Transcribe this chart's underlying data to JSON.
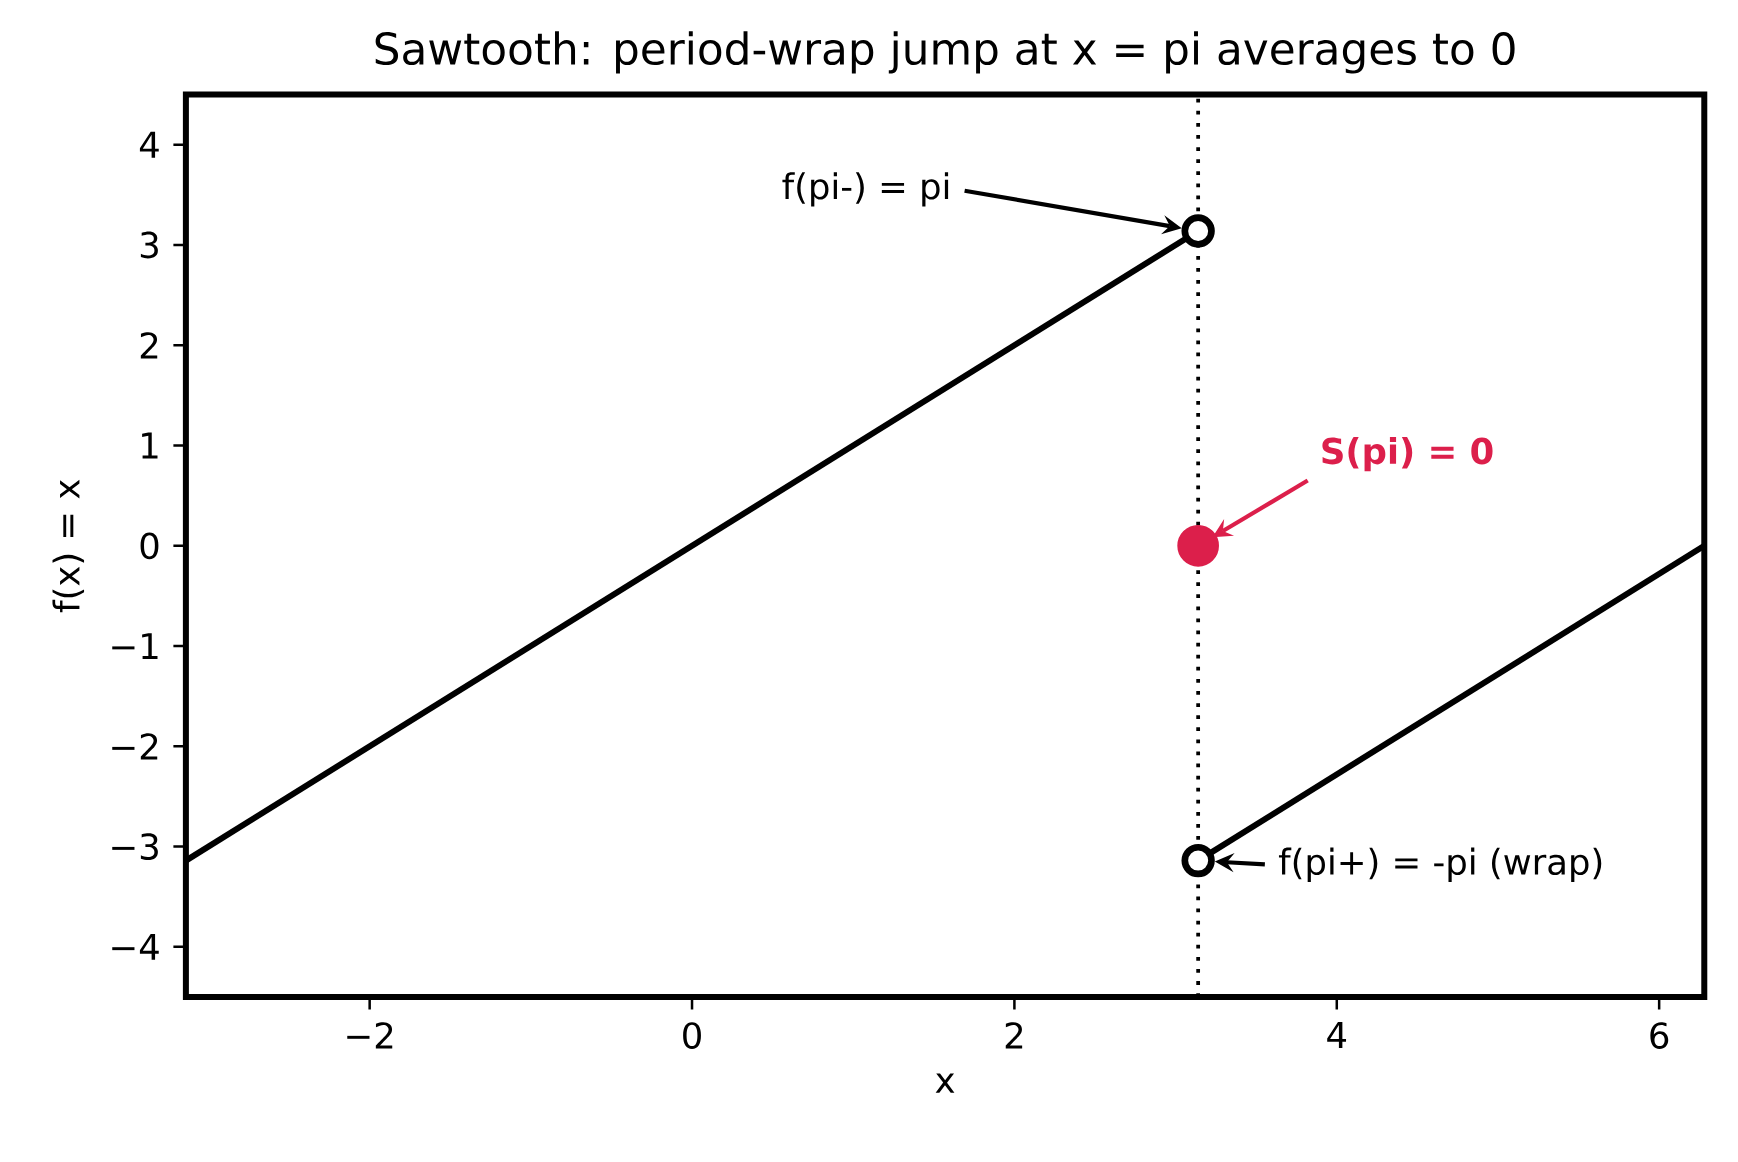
{
  "chart_data": {
    "type": "line",
    "title": "Sawtooth: period-wrap jump at x = pi averages to 0",
    "xlabel": "x",
    "ylabel": "f(x) = x",
    "xlim": [
      -3.14,
      6.28
    ],
    "ylim": [
      -4.5,
      4.5
    ],
    "xticks": [
      {
        "value": -2,
        "label": "−2"
      },
      0,
      2,
      4,
      6
    ],
    "yticks": [
      {
        "value": -4,
        "label": "−4"
      },
      {
        "value": -3,
        "label": "−3"
      },
      {
        "value": -2,
        "label": "−2"
      },
      {
        "value": -1,
        "label": "−1"
      },
      0,
      1,
      2,
      3,
      4
    ],
    "series": [
      {
        "color": "#000000",
        "x": [
          -3.14,
          3.14
        ],
        "values": [
          -3.14,
          3.14
        ]
      },
      {
        "color": "#000000",
        "x": [
          3.14,
          6.28
        ],
        "values": [
          -3.14,
          0
        ]
      },
      {
        "type": "scatter",
        "color": "#000000",
        "marker": "circle",
        "x": [
          3.14,
          3.14
        ],
        "values": [
          3.14,
          -3.14
        ]
      },
      {
        "type": "scatter",
        "color": "#dc1f4b",
        "marker": "circle",
        "x": [
          3.14
        ],
        "values": [
          0
        ]
      }
    ],
    "ref_lines": [
      {
        "axis": "x",
        "value": 3.14,
        "line_style": "dotted",
        "color": "#000000"
      }
    ],
    "annotations": [
      "f(pi-) = pi",
      "S(pi) = 0",
      "f(pi+) = -pi (wrap)"
    ]
  }
}
